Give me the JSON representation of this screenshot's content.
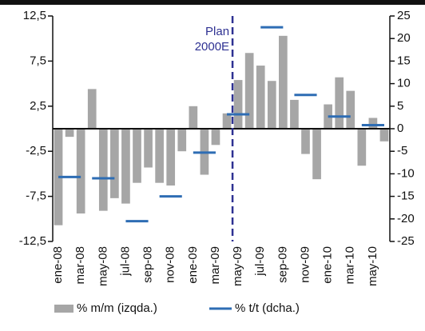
{
  "chart_data": {
    "type": "bar",
    "categories": [
      "ene-08",
      null,
      "mar-08",
      null,
      "may-08",
      null,
      "jul-08",
      null,
      "sep-08",
      null,
      "nov-08",
      null,
      "ene-09",
      null,
      "mar-09",
      null,
      "may-09",
      null,
      "jul-09",
      null,
      "sep-09",
      null,
      "nov-09",
      null,
      "ene-10",
      null,
      "mar-10",
      null,
      "may-10",
      null
    ],
    "series": [
      {
        "name": "% m/m (izqda.)",
        "color": "#a6a6a6",
        "values": [
          -10.7,
          -0.9,
          -9.4,
          4.4,
          -9.1,
          -7.7,
          -8.3,
          -6.0,
          -4.3,
          -6.0,
          -6.3,
          -2.5,
          2.5,
          -5.1,
          -1.8,
          1.7,
          5.4,
          8.4,
          7.0,
          5.3,
          10.3,
          3.2,
          -2.8,
          -5.6,
          2.7,
          5.7,
          4.2,
          -4.1,
          1.2,
          -1.4
        ]
      },
      {
        "name": "% t/t (dcha.)",
        "color": "#2e6db4",
        "axis": "y2",
        "values": [
          null,
          -10.7,
          null,
          null,
          -11,
          null,
          null,
          -20.5,
          null,
          null,
          -15,
          null,
          null,
          -5.3,
          null,
          null,
          3.2,
          null,
          null,
          22.5,
          null,
          null,
          7.5,
          null,
          null,
          2.7,
          null,
          null,
          0.8,
          null
        ]
      }
    ],
    "ylim": [
      -12.5,
      12.5
    ],
    "yticks": [
      {
        "value": -12.5,
        "label": "-12,5"
      },
      {
        "value": -7.5,
        "label": "-7,5"
      },
      {
        "value": -2.5,
        "label": "-2,5"
      },
      {
        "value": 2.5,
        "label": "2,5"
      },
      {
        "value": 7.5,
        "label": "7,5"
      },
      {
        "value": 12.5,
        "label": "12,5"
      }
    ],
    "y2lim": [
      -25,
      25
    ],
    "y2ticks": [
      -25,
      -20,
      -15,
      -10,
      -5,
      0,
      5,
      10,
      15,
      20,
      25
    ],
    "annotations": [
      "Plan",
      "2000E"
    ]
  }
}
